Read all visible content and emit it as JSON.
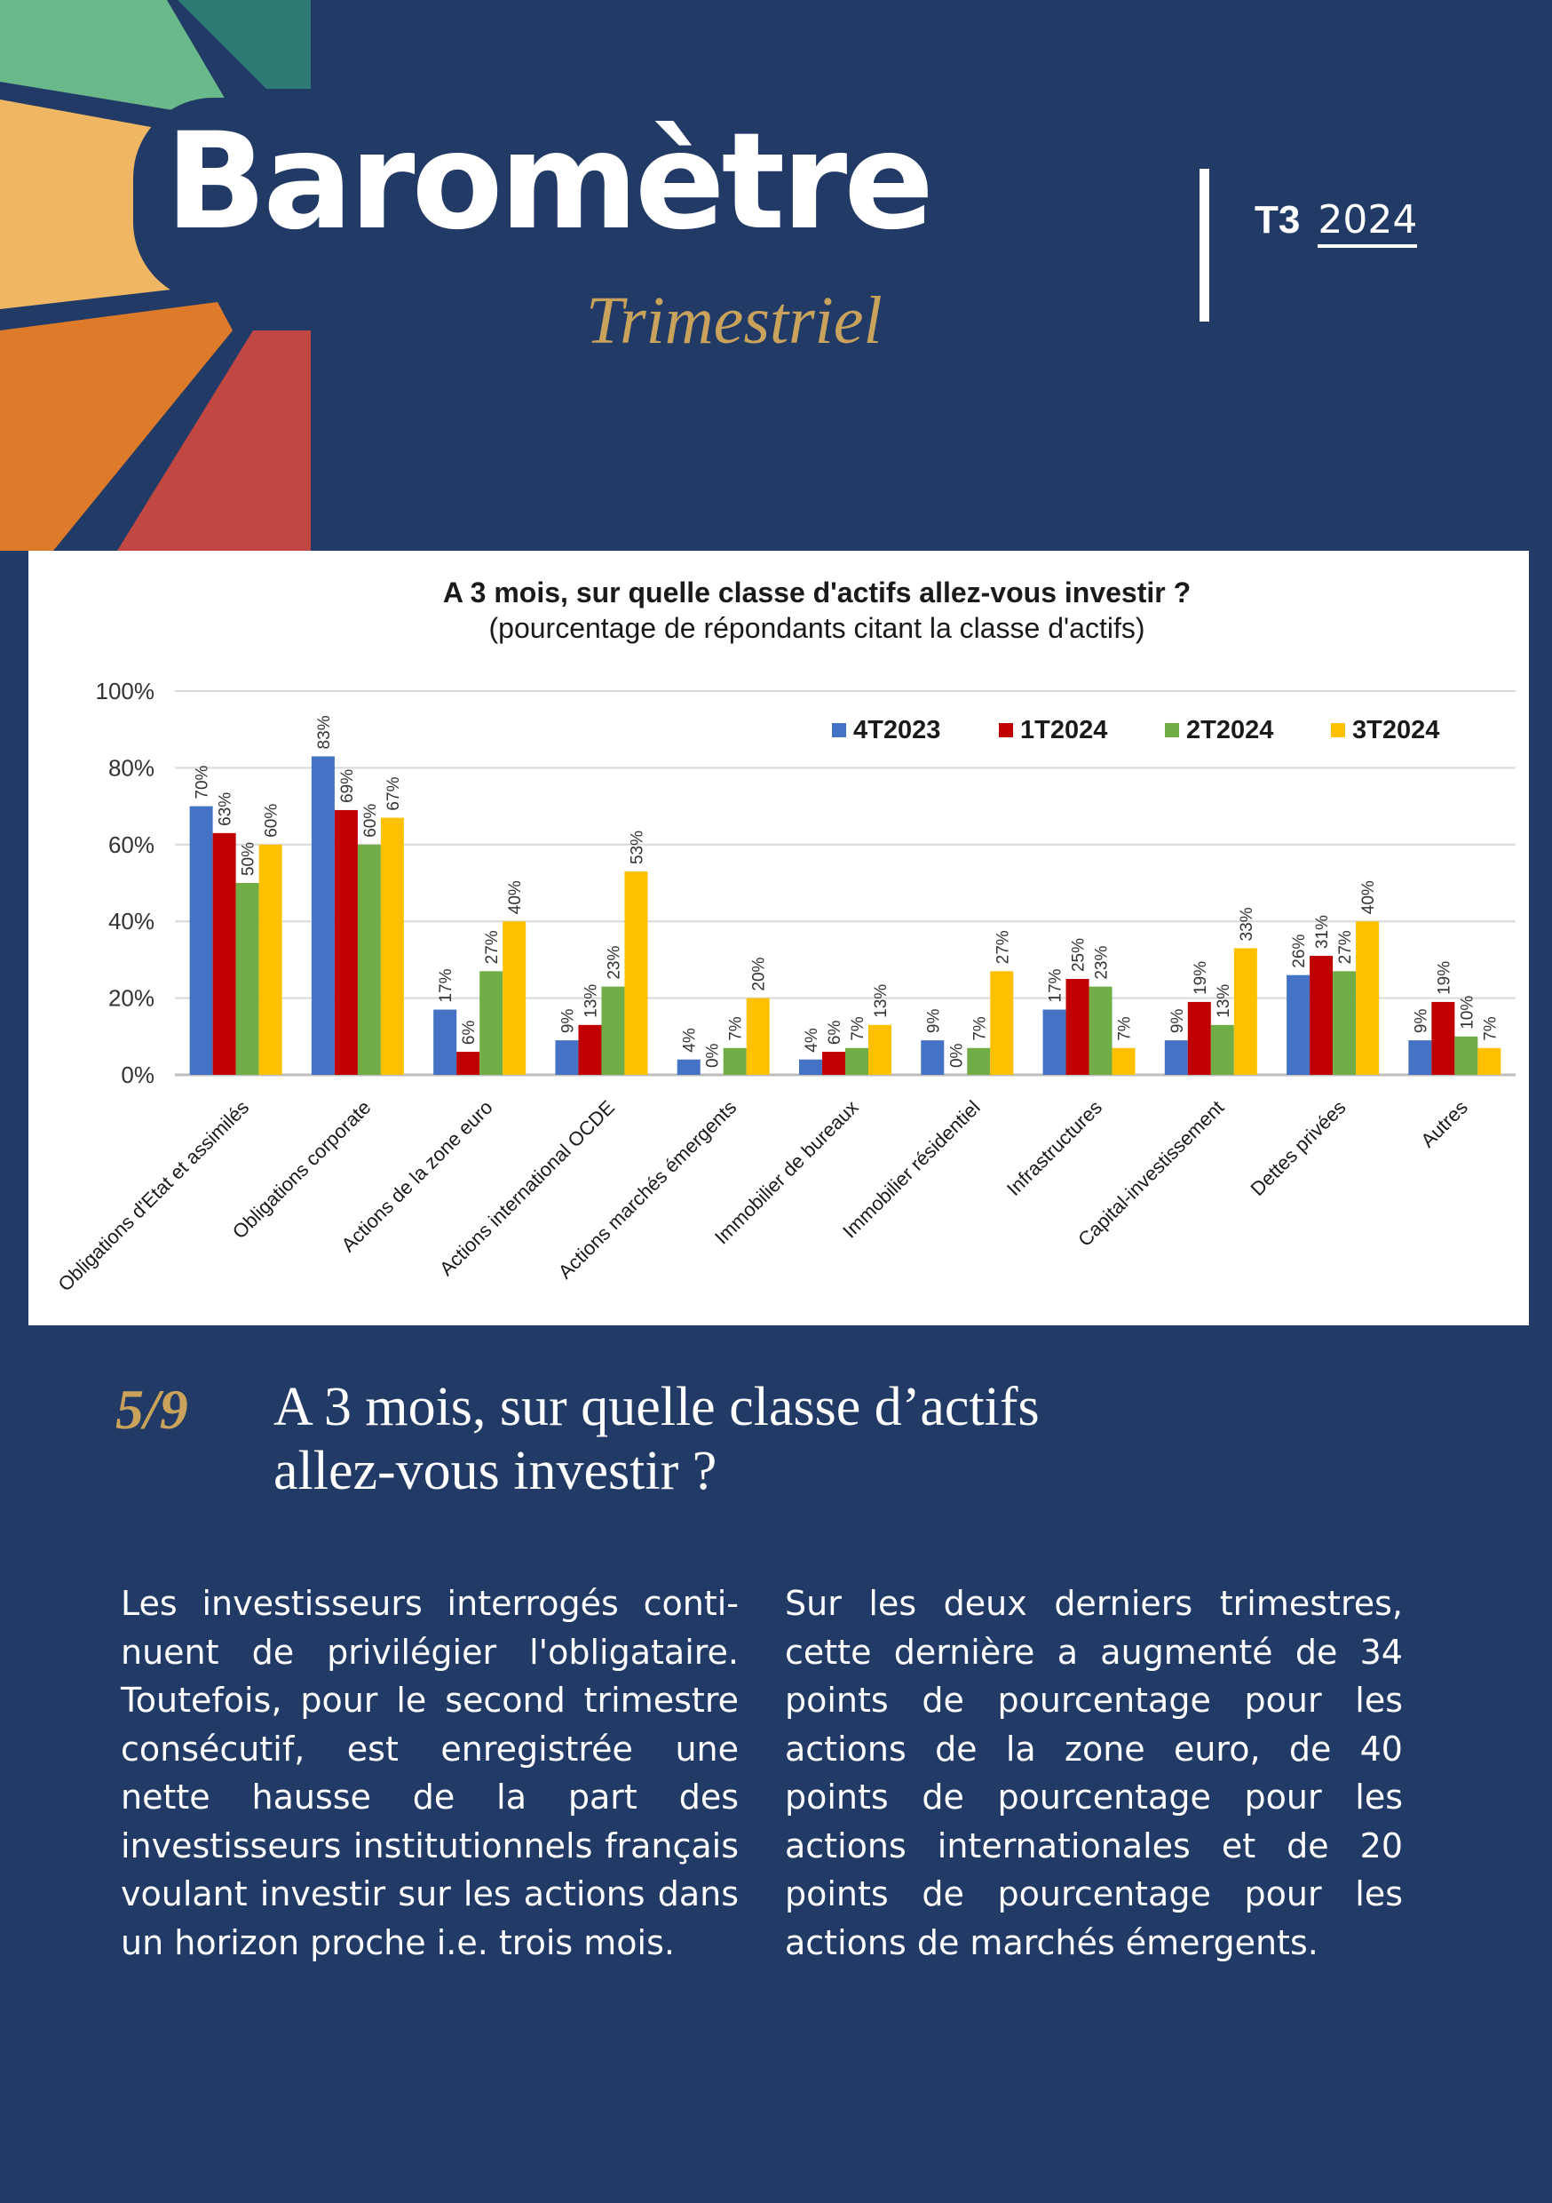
{
  "header": {
    "brand_title": "Baromètre",
    "brand_subtitle": "Trimestriel",
    "quarter": "T3",
    "year": "2024"
  },
  "colors": {
    "page_bg": "#223a66",
    "gold": "#c9a35c",
    "deco_teal": "#2e7a74",
    "deco_green": "#6ab98a",
    "deco_yellow": "#efb664",
    "deco_orange": "#de7b2a",
    "deco_red": "#c04742"
  },
  "chart_data": {
    "type": "bar",
    "title": "A 3 mois, sur quelle classe d'actifs allez-vous investir ?",
    "subtitle": "(pourcentage de répondants citant la classe d'actifs)",
    "categories": [
      "Obligations d'Etat et assimilés",
      "Obligations corporate",
      "Actions de la zone euro",
      "Actions international OCDE",
      "Actions marchés émergents",
      "Immobilier de bureaux",
      "Immobilier résidentiel",
      "Infrastructures",
      "Capital-investissement",
      "Dettes privées",
      "Autres"
    ],
    "series": [
      {
        "name": "4T2023",
        "color": "#4472c4",
        "values": [
          70,
          83,
          17,
          9,
          4,
          4,
          9,
          17,
          9,
          26,
          9
        ]
      },
      {
        "name": "1T2024",
        "color": "#c00000",
        "values": [
          63,
          69,
          6,
          13,
          0,
          6,
          0,
          25,
          19,
          31,
          19
        ]
      },
      {
        "name": "2T2024",
        "color": "#70ad47",
        "values": [
          50,
          60,
          27,
          23,
          7,
          7,
          7,
          23,
          13,
          27,
          10
        ]
      },
      {
        "name": "3T2024",
        "color": "#ffc000",
        "values": [
          60,
          67,
          40,
          53,
          20,
          13,
          27,
          7,
          33,
          40,
          7
        ]
      }
    ],
    "ylim": [
      0,
      100
    ],
    "yticks": [
      "0%",
      "20%",
      "40%",
      "60%",
      "80%",
      "100%"
    ],
    "grid": true,
    "legend": "top-right",
    "value_suffix": "%"
  },
  "section": {
    "number": "5/9",
    "title_line1": "A 3 mois, sur quelle classe d’actifs",
    "title_line2": "allez-vous investir ?"
  },
  "body": {
    "left": "Les investisseurs interrogés conti­nuent de privilégier l'obligataire. Toutefois, pour le second trimestre consécutif, est enregistrée une nette hausse de la part des investisseurs institutionnels français voulant inves­tir sur les actions dans un horizon proche i.e. trois mois.",
    "right": "Sur les deux derniers trimestres, cette dernière a augmenté de 34 points de pourcentage pour les actions de la zone euro, de 40 points de pourcentage pour les actions internationales et de 20 points de pourcentage pour les actions de marchés émergents."
  }
}
